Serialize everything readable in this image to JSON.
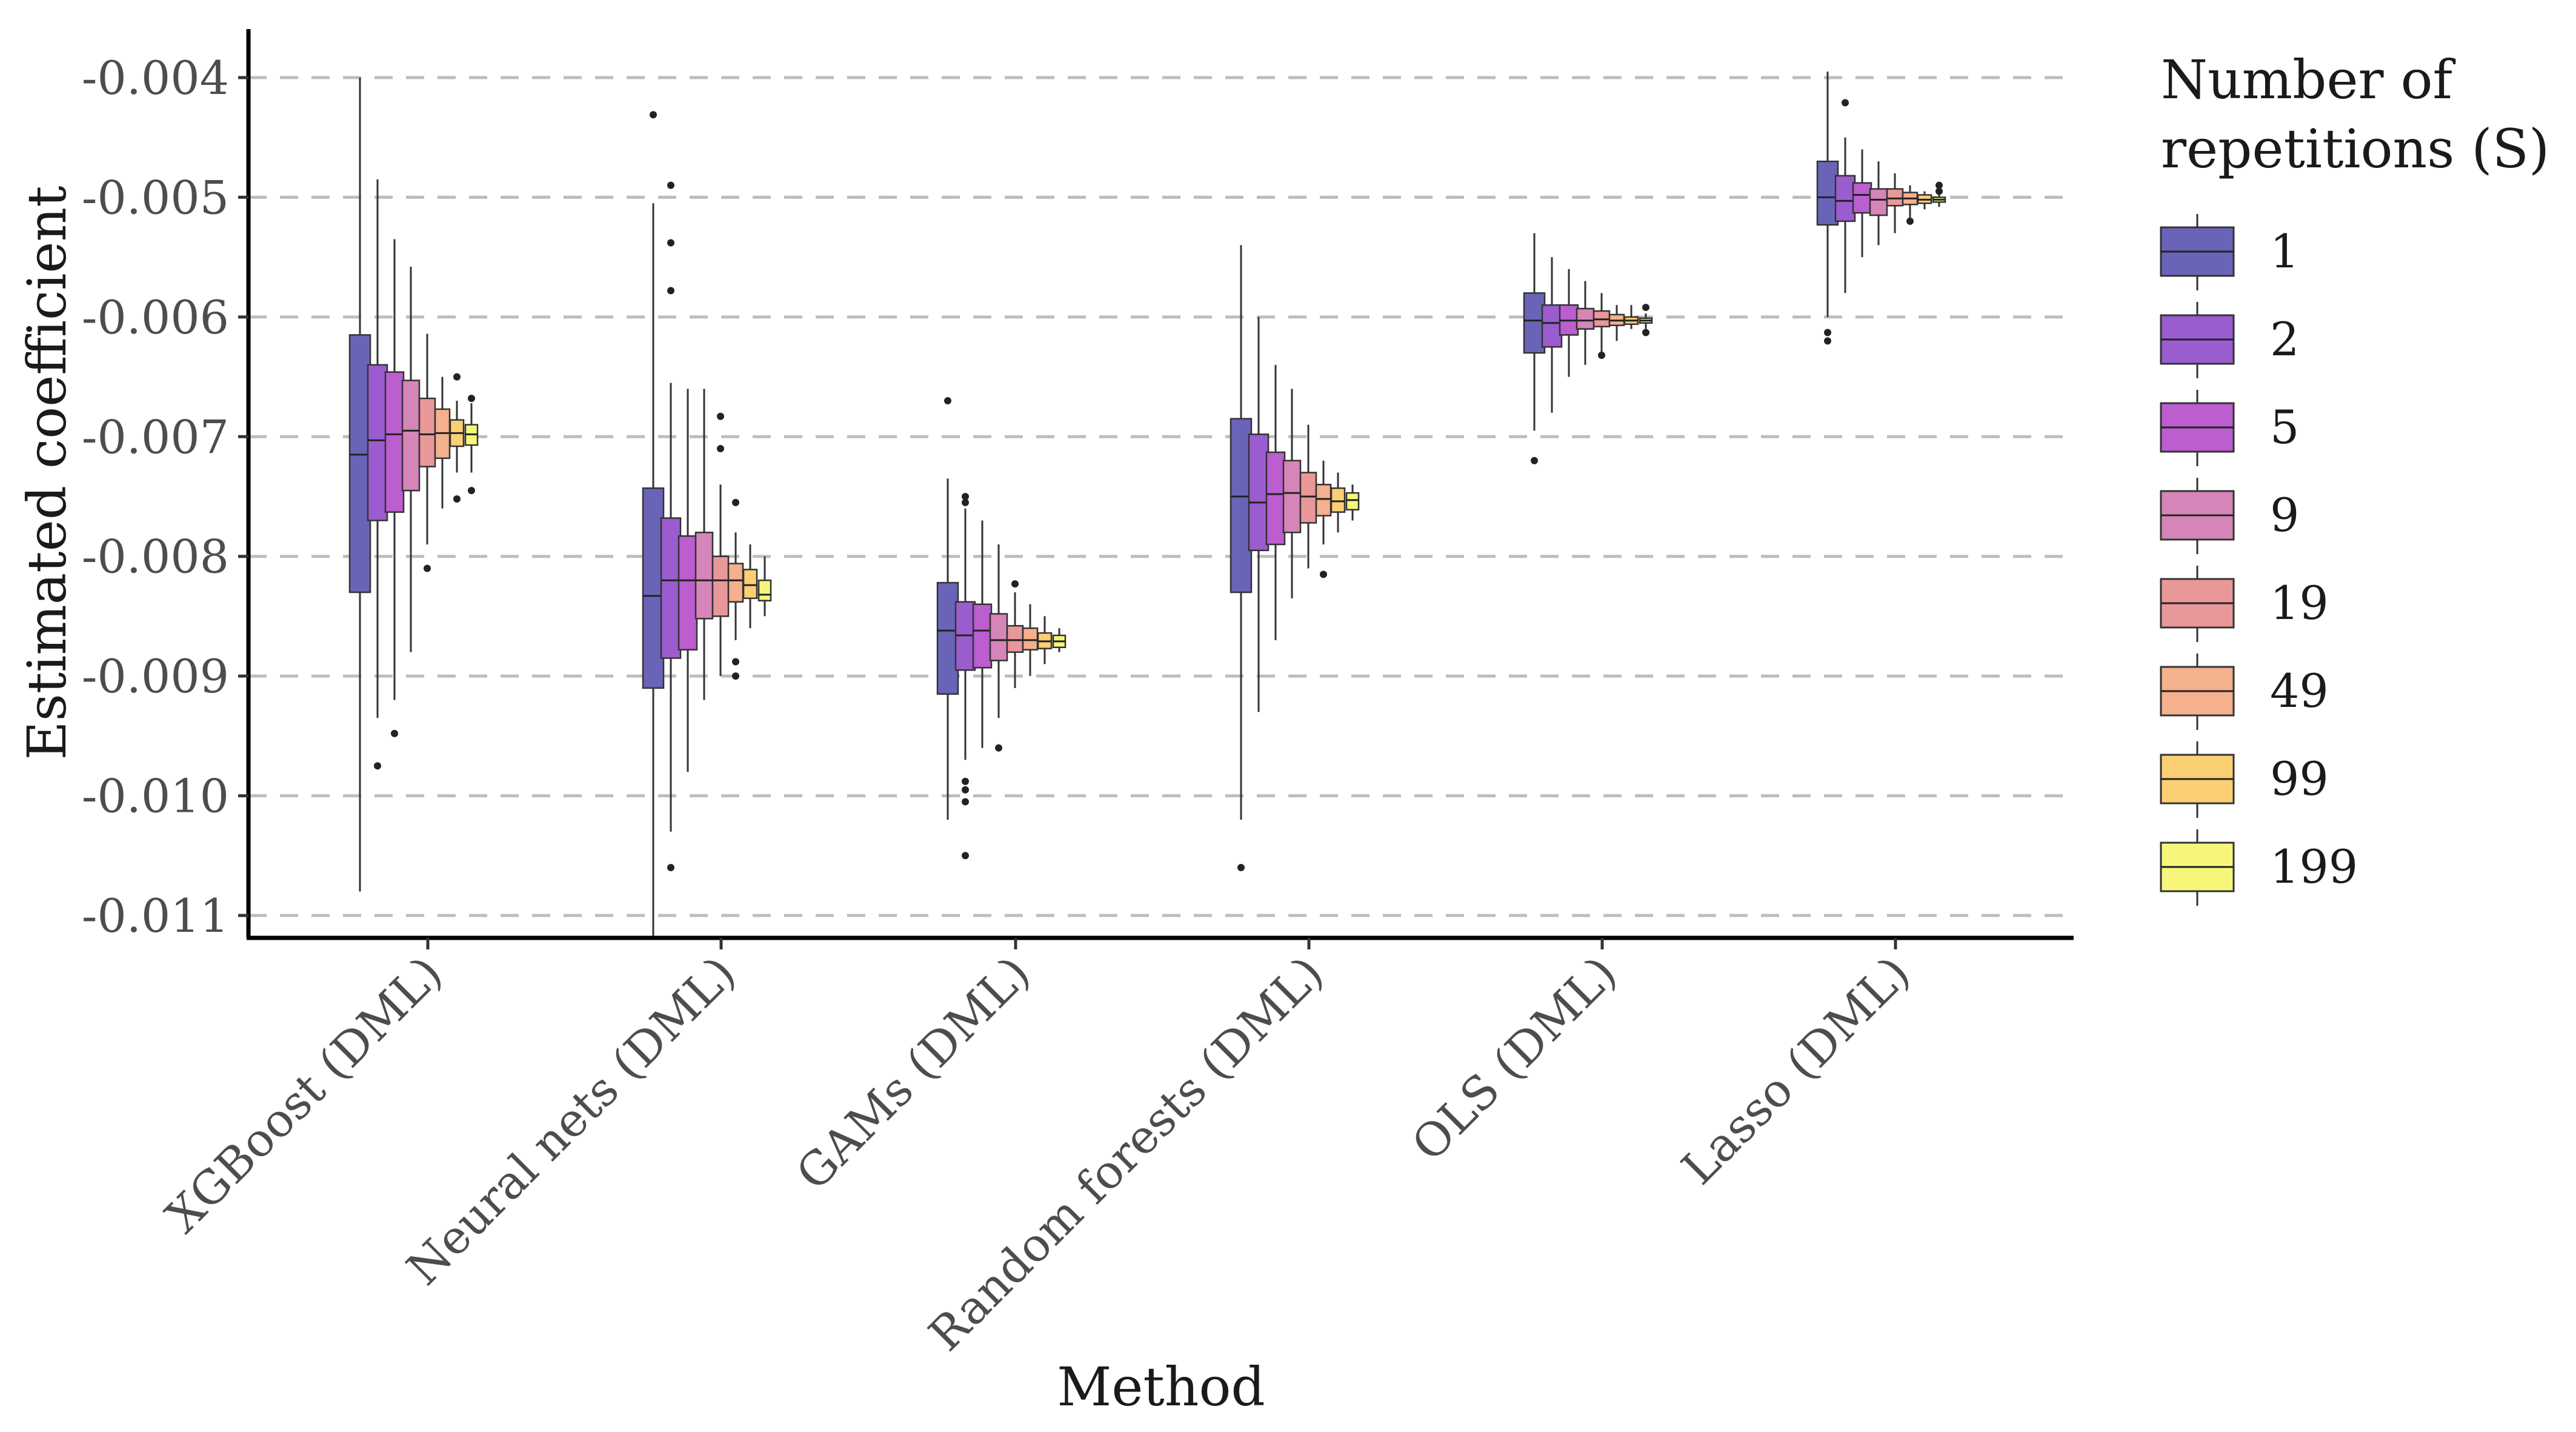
{
  "chart_data": {
    "type": "boxplot",
    "xlabel": "Method",
    "ylabel": "Estimated coefficient",
    "ylim": [
      -0.0111,
      -0.0037
    ],
    "yticks": [
      -0.004,
      -0.005,
      -0.006,
      -0.007,
      -0.008,
      -0.009,
      -0.01,
      -0.011
    ],
    "ytick_labels": [
      "-0.004",
      "-0.005",
      "-0.006",
      "-0.007",
      "-0.008",
      "-0.009",
      "-0.010",
      "-0.011"
    ],
    "grid": "horizontal dashed",
    "legend": {
      "title_lines": [
        "Number of",
        "repetitions (S)"
      ],
      "position": "right",
      "entries": [
        {
          "label": "1",
          "color": "#6a64b8"
        },
        {
          "label": "2",
          "color": "#9a5ccf"
        },
        {
          "label": "5",
          "color": "#bc5dd0"
        },
        {
          "label": "9",
          "color": "#d585b8"
        },
        {
          "label": "19",
          "color": "#e9989a"
        },
        {
          "label": "49",
          "color": "#f5b08d"
        },
        {
          "label": "99",
          "color": "#fbcf74"
        },
        {
          "label": "199",
          "color": "#f6f67a"
        }
      ]
    },
    "categories": [
      "XGBoost (DML)",
      "Neural nets (DML)",
      "GAMs (DML)",
      "Random forests (DML)",
      "OLS (DML)",
      "Lasso (DML)"
    ],
    "groups": [
      {
        "method": "XGBoost (DML)",
        "boxes": [
          {
            "S": "1",
            "q1": -0.0083,
            "median": -0.00715,
            "q3": -0.00615,
            "lo": -0.0108,
            "hi": -0.004,
            "outliers": []
          },
          {
            "S": "2",
            "q1": -0.0077,
            "median": -0.00703,
            "q3": -0.0064,
            "lo": -0.00935,
            "hi": -0.00485,
            "outliers": [
              -0.00975
            ]
          },
          {
            "S": "5",
            "q1": -0.00763,
            "median": -0.00698,
            "q3": -0.00646,
            "lo": -0.0092,
            "hi": -0.00535,
            "outliers": [
              -0.00948
            ]
          },
          {
            "S": "9",
            "q1": -0.00745,
            "median": -0.00695,
            "q3": -0.00653,
            "lo": -0.0088,
            "hi": -0.00558,
            "outliers": []
          },
          {
            "S": "19",
            "q1": -0.00725,
            "median": -0.00698,
            "q3": -0.00668,
            "lo": -0.0079,
            "hi": -0.00614,
            "outliers": [
              -0.0081
            ]
          },
          {
            "S": "49",
            "q1": -0.00718,
            "median": -0.00697,
            "q3": -0.00677,
            "lo": -0.0076,
            "hi": -0.0065,
            "outliers": []
          },
          {
            "S": "99",
            "q1": -0.00708,
            "median": -0.00697,
            "q3": -0.00686,
            "lo": -0.0073,
            "hi": -0.0067,
            "outliers": [
              -0.0065,
              -0.00752
            ]
          },
          {
            "S": "199",
            "q1": -0.00707,
            "median": -0.00698,
            "q3": -0.0069,
            "lo": -0.0073,
            "hi": -0.00672,
            "outliers": [
              -0.00668,
              -0.00745
            ]
          }
        ]
      },
      {
        "method": "Neural nets (DML)",
        "boxes": [
          {
            "S": "1",
            "q1": -0.0091,
            "median": -0.00833,
            "q3": -0.00743,
            "lo": -0.0112,
            "hi": -0.00505,
            "outliers": [
              -0.00431
            ]
          },
          {
            "S": "2",
            "q1": -0.00885,
            "median": -0.0082,
            "q3": -0.00768,
            "lo": -0.0103,
            "hi": -0.00655,
            "outliers": [
              -0.0049,
              -0.00538,
              -0.00578,
              -0.0106
            ]
          },
          {
            "S": "5",
            "q1": -0.00878,
            "median": -0.0082,
            "q3": -0.00783,
            "lo": -0.0098,
            "hi": -0.0066,
            "outliers": []
          },
          {
            "S": "9",
            "q1": -0.00852,
            "median": -0.0082,
            "q3": -0.0078,
            "lo": -0.0092,
            "hi": -0.0066,
            "outliers": []
          },
          {
            "S": "19",
            "q1": -0.0085,
            "median": -0.0082,
            "q3": -0.008,
            "lo": -0.009,
            "hi": -0.0074,
            "outliers": [
              -0.00683,
              -0.0071
            ]
          },
          {
            "S": "49",
            "q1": -0.00838,
            "median": -0.0082,
            "q3": -0.00806,
            "lo": -0.0087,
            "hi": -0.0078,
            "outliers": [
              -0.00755,
              -0.00888,
              -0.009
            ]
          },
          {
            "S": "99",
            "q1": -0.00835,
            "median": -0.00824,
            "q3": -0.00811,
            "lo": -0.0086,
            "hi": -0.0079,
            "outliers": []
          },
          {
            "S": "199",
            "q1": -0.00837,
            "median": -0.00832,
            "q3": -0.0082,
            "lo": -0.0085,
            "hi": -0.008,
            "outliers": []
          }
        ]
      },
      {
        "method": "GAMs (DML)",
        "boxes": [
          {
            "S": "1",
            "q1": -0.00915,
            "median": -0.00862,
            "q3": -0.00822,
            "lo": -0.0102,
            "hi": -0.00735,
            "outliers": [
              -0.0067
            ]
          },
          {
            "S": "2",
            "q1": -0.00895,
            "median": -0.00866,
            "q3": -0.00838,
            "lo": -0.0097,
            "hi": -0.0076,
            "outliers": [
              -0.0075,
              -0.00755,
              -0.00988,
              -0.00995,
              -0.01005,
              -0.0105
            ]
          },
          {
            "S": "5",
            "q1": -0.00893,
            "median": -0.00862,
            "q3": -0.0084,
            "lo": -0.0096,
            "hi": -0.0077,
            "outliers": []
          },
          {
            "S": "9",
            "q1": -0.00887,
            "median": -0.0087,
            "q3": -0.00848,
            "lo": -0.00935,
            "hi": -0.0079,
            "outliers": [
              -0.0096
            ]
          },
          {
            "S": "19",
            "q1": -0.0088,
            "median": -0.0087,
            "q3": -0.00858,
            "lo": -0.0091,
            "hi": -0.0083,
            "outliers": [
              -0.00823
            ]
          },
          {
            "S": "49",
            "q1": -0.00878,
            "median": -0.0087,
            "q3": -0.0086,
            "lo": -0.009,
            "hi": -0.0084,
            "outliers": []
          },
          {
            "S": "99",
            "q1": -0.00877,
            "median": -0.00871,
            "q3": -0.00864,
            "lo": -0.0089,
            "hi": -0.0085,
            "outliers": []
          },
          {
            "S": "199",
            "q1": -0.00876,
            "median": -0.00871,
            "q3": -0.00866,
            "lo": -0.0088,
            "hi": -0.0086,
            "outliers": []
          }
        ]
      },
      {
        "method": "Random forests (DML)",
        "boxes": [
          {
            "S": "1",
            "q1": -0.0083,
            "median": -0.0075,
            "q3": -0.00685,
            "lo": -0.0102,
            "hi": -0.0054,
            "outliers": [
              -0.0106
            ]
          },
          {
            "S": "2",
            "q1": -0.00795,
            "median": -0.00755,
            "q3": -0.00698,
            "lo": -0.0093,
            "hi": -0.006,
            "outliers": []
          },
          {
            "S": "5",
            "q1": -0.0079,
            "median": -0.00748,
            "q3": -0.00713,
            "lo": -0.0087,
            "hi": -0.0064,
            "outliers": []
          },
          {
            "S": "9",
            "q1": -0.0078,
            "median": -0.00747,
            "q3": -0.0072,
            "lo": -0.00835,
            "hi": -0.0066,
            "outliers": []
          },
          {
            "S": "19",
            "q1": -0.00772,
            "median": -0.0075,
            "q3": -0.0073,
            "lo": -0.0081,
            "hi": -0.0069,
            "outliers": []
          },
          {
            "S": "49",
            "q1": -0.00766,
            "median": -0.00752,
            "q3": -0.0074,
            "lo": -0.0079,
            "hi": -0.0072,
            "outliers": [
              -0.00815
            ]
          },
          {
            "S": "99",
            "q1": -0.00763,
            "median": -0.00754,
            "q3": -0.00743,
            "lo": -0.0078,
            "hi": -0.0073,
            "outliers": []
          },
          {
            "S": "199",
            "q1": -0.00761,
            "median": -0.00753,
            "q3": -0.00747,
            "lo": -0.0077,
            "hi": -0.0074,
            "outliers": []
          }
        ]
      },
      {
        "method": "OLS (DML)",
        "boxes": [
          {
            "S": "1",
            "q1": -0.0063,
            "median": -0.00603,
            "q3": -0.0058,
            "lo": -0.00695,
            "hi": -0.0053,
            "outliers": [
              -0.0072
            ]
          },
          {
            "S": "2",
            "q1": -0.00625,
            "median": -0.00605,
            "q3": -0.0059,
            "lo": -0.0068,
            "hi": -0.0055,
            "outliers": []
          },
          {
            "S": "5",
            "q1": -0.00615,
            "median": -0.00603,
            "q3": -0.0059,
            "lo": -0.0065,
            "hi": -0.0056,
            "outliers": []
          },
          {
            "S": "9",
            "q1": -0.0061,
            "median": -0.00603,
            "q3": -0.00593,
            "lo": -0.0064,
            "hi": -0.0057,
            "outliers": []
          },
          {
            "S": "19",
            "q1": -0.00608,
            "median": -0.00602,
            "q3": -0.00595,
            "lo": -0.0063,
            "hi": -0.0058,
            "outliers": [
              -0.00632
            ]
          },
          {
            "S": "49",
            "q1": -0.00607,
            "median": -0.00603,
            "q3": -0.00598,
            "lo": -0.0062,
            "hi": -0.0059,
            "outliers": []
          },
          {
            "S": "99",
            "q1": -0.00606,
            "median": -0.00603,
            "q3": -0.006,
            "lo": -0.0061,
            "hi": -0.0059,
            "outliers": []
          },
          {
            "S": "199",
            "q1": -0.00605,
            "median": -0.00603,
            "q3": -0.00601,
            "lo": -0.0061,
            "hi": -0.00597,
            "outliers": [
              -0.00592,
              -0.00613
            ]
          }
        ]
      },
      {
        "method": "Lasso (DML)",
        "boxes": [
          {
            "S": "1",
            "q1": -0.00523,
            "median": -0.005,
            "q3": -0.0047,
            "lo": -0.006,
            "hi": -0.00395,
            "outliers": [
              -0.00613,
              -0.0062
            ]
          },
          {
            "S": "2",
            "q1": -0.0052,
            "median": -0.00503,
            "q3": -0.00482,
            "lo": -0.0058,
            "hi": -0.0045,
            "outliers": [
              -0.00421
            ]
          },
          {
            "S": "5",
            "q1": -0.00513,
            "median": -0.00498,
            "q3": -0.00488,
            "lo": -0.0055,
            "hi": -0.0046,
            "outliers": []
          },
          {
            "S": "9",
            "q1": -0.00515,
            "median": -0.00502,
            "q3": -0.00493,
            "lo": -0.0054,
            "hi": -0.0047,
            "outliers": []
          },
          {
            "S": "19",
            "q1": -0.00507,
            "median": -0.00501,
            "q3": -0.00493,
            "lo": -0.0053,
            "hi": -0.0048,
            "outliers": []
          },
          {
            "S": "49",
            "q1": -0.00506,
            "median": -0.00501,
            "q3": -0.00496,
            "lo": -0.0052,
            "hi": -0.0049,
            "outliers": [
              -0.0052
            ]
          },
          {
            "S": "99",
            "q1": -0.00505,
            "median": -0.00502,
            "q3": -0.00498,
            "lo": -0.0051,
            "hi": -0.00495,
            "outliers": []
          },
          {
            "S": "199",
            "q1": -0.00504,
            "median": -0.00502,
            "q3": -0.005,
            "lo": -0.00508,
            "hi": -0.00497,
            "outliers": [
              -0.0049,
              -0.00495
            ]
          }
        ]
      }
    ]
  }
}
